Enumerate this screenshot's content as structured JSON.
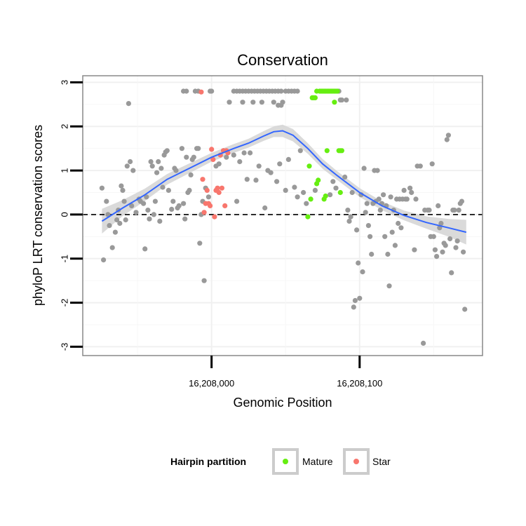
{
  "chart_data": {
    "type": "scatter",
    "title": "Conservation",
    "xlabel": "Genomic Position",
    "ylabel": "phyloP LRT conservation scores",
    "xlim": [
      16207913,
      16208183
    ],
    "ylim": [
      -3.2,
      3.15
    ],
    "x_ticks": [
      16208000,
      16208100
    ],
    "x_tick_labels": [
      "16,208,000",
      "16,208,100"
    ],
    "y_ticks": [
      -3,
      -2,
      -1,
      0,
      1,
      2,
      3
    ],
    "y_tick_labels": [
      "-3",
      "-2",
      "-1",
      "0",
      "1",
      "2",
      "3"
    ],
    "grid": true,
    "reference_line": {
      "y": 0,
      "style": "dashed"
    },
    "legend": {
      "title": "Hairpin partition",
      "position": "bottom",
      "entries": [
        {
          "label": "Mature",
          "color": "#66ee11"
        },
        {
          "label": "Star",
          "color": "#f8766d"
        }
      ]
    },
    "colors": {
      "other": "#999999",
      "mature": "#66ee11",
      "star": "#f8766d",
      "smooth": "#3366ff",
      "band": "#d4d4d4"
    },
    "series": [
      {
        "group": "other",
        "points": [
          [
            16207926,
            0.6
          ],
          [
            16207927,
            -1.03
          ],
          [
            16207929,
            0.3
          ],
          [
            16207930,
            0.0
          ],
          [
            16207931,
            -0.25
          ],
          [
            16207933,
            -0.75
          ],
          [
            16207935,
            -0.4
          ],
          [
            16207936,
            -0.12
          ],
          [
            16207937,
            0.1
          ],
          [
            16207938,
            -0.2
          ],
          [
            16207939,
            0.65
          ],
          [
            16207940,
            0.55
          ],
          [
            16207941,
            0.3
          ],
          [
            16207942,
            -0.12
          ],
          [
            16207943,
            1.1
          ],
          [
            16207944,
            2.52
          ],
          [
            16207945,
            1.2
          ],
          [
            16207946,
            0.2
          ],
          [
            16207947,
            1.0
          ],
          [
            16207949,
            0.05
          ],
          [
            16207951,
            0.35
          ],
          [
            16207952,
            0.3
          ],
          [
            16207954,
            0.25
          ],
          [
            16207955,
            -0.78
          ],
          [
            16207956,
            0.4
          ],
          [
            16207957,
            0.1
          ],
          [
            16207958,
            -0.1
          ],
          [
            16207959,
            1.2
          ],
          [
            16207960,
            1.1
          ],
          [
            16207961,
            0.0
          ],
          [
            16207962,
            0.3
          ],
          [
            16207963,
            0.95
          ],
          [
            16207964,
            1.2
          ],
          [
            16207965,
            -0.15
          ],
          [
            16207966,
            1.05
          ],
          [
            16207967,
            0.62
          ],
          [
            16207968,
            1.35
          ],
          [
            16207969,
            1.42
          ],
          [
            16207970,
            1.45
          ],
          [
            16207971,
            0.55
          ],
          [
            16207973,
            0.12
          ],
          [
            16207974,
            0.3
          ],
          [
            16207975,
            1.05
          ],
          [
            16207976,
            1.0
          ],
          [
            16207977,
            0.15
          ],
          [
            16207978,
            0.2
          ],
          [
            16207980,
            1.5
          ],
          [
            16207981,
            0.25
          ],
          [
            16207982,
            -0.1
          ],
          [
            16207983,
            1.3
          ],
          [
            16207984,
            0.5
          ],
          [
            16207985,
            0.55
          ],
          [
            16207986,
            0.9
          ],
          [
            16207987,
            1.25
          ],
          [
            16207988,
            1.3
          ],
          [
            16207990,
            1.5
          ],
          [
            16207991,
            1.5
          ],
          [
            16207992,
            -0.65
          ],
          [
            16207993,
            0.0
          ],
          [
            16207994,
            0.3
          ],
          [
            16207995,
            -1.5
          ],
          [
            16207996,
            0.6
          ],
          [
            16207998,
            0.4
          ],
          [
            16207999,
            2.8
          ],
          [
            16208000,
            2.8
          ],
          [
            16207981,
            2.8
          ],
          [
            16207983,
            2.8
          ],
          [
            16207989,
            2.8
          ],
          [
            16207991,
            2.8
          ],
          [
            16208003,
            1.1
          ],
          [
            16208005,
            1.15
          ],
          [
            16208008,
            1.45
          ],
          [
            16208010,
            1.3
          ],
          [
            16208012,
            2.55
          ],
          [
            16208015,
            1.35
          ],
          [
            16208017,
            0.3
          ],
          [
            16208019,
            1.2
          ],
          [
            16208021,
            2.55
          ],
          [
            16208022,
            1.4
          ],
          [
            16208024,
            0.8
          ],
          [
            16208026,
            1.4
          ],
          [
            16208028,
            2.55
          ],
          [
            16208030,
            0.78
          ],
          [
            16208032,
            1.1
          ],
          [
            16208034,
            2.55
          ],
          [
            16208036,
            0.15
          ],
          [
            16208038,
            1.0
          ],
          [
            16208040,
            0.95
          ],
          [
            16208042,
            2.55
          ],
          [
            16208044,
            0.75
          ],
          [
            16208046,
            1.15
          ],
          [
            16208048,
            2.55
          ],
          [
            16208050,
            0.55
          ],
          [
            16208052,
            1.25
          ],
          [
            16208054,
            2.8
          ],
          [
            16208056,
            0.62
          ],
          [
            16208058,
            0.4
          ],
          [
            16208060,
            1.45
          ],
          [
            16208062,
            0.5
          ],
          [
            16208064,
            0.25
          ],
          [
            16208070,
            0.55
          ],
          [
            16208080,
            0.45
          ],
          [
            16208082,
            0.75
          ],
          [
            16208084,
            0.6
          ],
          [
            16208086,
            2.8
          ],
          [
            16208088,
            2.6
          ],
          [
            16208090,
            0.85
          ],
          [
            16208092,
            0.1
          ],
          [
            16208093,
            -0.15
          ],
          [
            16208094,
            -0.05
          ],
          [
            16208095,
            0.5
          ],
          [
            16208096,
            -2.1
          ],
          [
            16208097,
            -1.95
          ],
          [
            16208098,
            -0.35
          ],
          [
            16208099,
            -1.1
          ],
          [
            16208100,
            -1.9
          ],
          [
            16208101,
            0.45
          ],
          [
            16208102,
            -1.3
          ],
          [
            16208103,
            1.05
          ],
          [
            16208104,
            0.05
          ],
          [
            16208105,
            0.25
          ],
          [
            16208106,
            -0.25
          ],
          [
            16208107,
            -0.5
          ],
          [
            16208108,
            -0.9
          ],
          [
            16208109,
            0.25
          ],
          [
            16208110,
            1.0
          ],
          [
            16208111,
            0.3
          ],
          [
            16208112,
            1.0
          ],
          [
            16208113,
            0.35
          ],
          [
            16208114,
            0.1
          ],
          [
            16208115,
            0.25
          ],
          [
            16208116,
            0.45
          ],
          [
            16208117,
            -0.5
          ],
          [
            16208118,
            0.2
          ],
          [
            16208119,
            -0.9
          ],
          [
            16208120,
            -1.62
          ],
          [
            16208121,
            0.4
          ],
          [
            16208122,
            -0.4
          ],
          [
            16208123,
            0.1
          ],
          [
            16208124,
            -0.7
          ],
          [
            16208125,
            0.35
          ],
          [
            16208126,
            -0.2
          ],
          [
            16208127,
            0.35
          ],
          [
            16208128,
            -0.3
          ],
          [
            16208129,
            0.35
          ],
          [
            16208130,
            0.55
          ],
          [
            16208131,
            0.35
          ],
          [
            16208132,
            0.35
          ],
          [
            16208134,
            0.6
          ],
          [
            16208135,
            0.5
          ],
          [
            16208137,
            -0.8
          ],
          [
            16208138,
            0.35
          ],
          [
            16208139,
            1.1
          ],
          [
            16208141,
            1.1
          ],
          [
            16208143,
            -2.92
          ],
          [
            16208144,
            0.1
          ],
          [
            16208146,
            0.1
          ],
          [
            16208147,
            0.1
          ],
          [
            16208148,
            -0.5
          ],
          [
            16208149,
            1.15
          ],
          [
            16208150,
            -0.5
          ],
          [
            16208151,
            -0.8
          ],
          [
            16208152,
            -0.95
          ],
          [
            16208153,
            0.2
          ],
          [
            16208154,
            -0.3
          ],
          [
            16208155,
            -0.2
          ],
          [
            16208156,
            -0.85
          ],
          [
            16208157,
            -0.65
          ],
          [
            16208158,
            -0.7
          ],
          [
            16208159,
            1.7
          ],
          [
            16208160,
            1.8
          ],
          [
            16208161,
            -0.55
          ],
          [
            16208162,
            -1.32
          ],
          [
            16208163,
            0.1
          ],
          [
            16208164,
            0.1
          ],
          [
            16208165,
            -0.75
          ],
          [
            16208166,
            -0.6
          ],
          [
            16208167,
            0.1
          ],
          [
            16208168,
            0.25
          ],
          [
            16208169,
            0.3
          ],
          [
            16208170,
            -0.85
          ],
          [
            16208171,
            -2.15
          ],
          [
            16208045,
            2.48
          ],
          [
            16208047,
            2.48
          ],
          [
            16208050,
            2.8
          ],
          [
            16208052,
            2.8
          ],
          [
            16208056,
            2.8
          ],
          [
            16208058,
            2.8
          ],
          [
            16208087,
            2.6
          ],
          [
            16208091,
            2.6
          ]
        ]
      },
      {
        "group": "top_band",
        "points": [
          [
            16208015,
            2.8
          ],
          [
            16208017,
            2.8
          ],
          [
            16208019,
            2.8
          ],
          [
            16208021,
            2.8
          ],
          [
            16208023,
            2.8
          ],
          [
            16208025,
            2.8
          ],
          [
            16208027,
            2.8
          ],
          [
            16208029,
            2.8
          ],
          [
            16208031,
            2.8
          ],
          [
            16208033,
            2.8
          ],
          [
            16208035,
            2.8
          ],
          [
            16208037,
            2.8
          ],
          [
            16208039,
            2.8
          ],
          [
            16208041,
            2.8
          ],
          [
            16208043,
            2.8
          ],
          [
            16208045,
            2.8
          ],
          [
            16208047,
            2.8
          ]
        ]
      },
      {
        "group": "mature",
        "points": [
          [
            16208065,
            -0.05
          ],
          [
            16208066,
            1.1
          ],
          [
            16208067,
            0.35
          ],
          [
            16208068,
            2.65
          ],
          [
            16208069,
            2.65
          ],
          [
            16208070,
            2.65
          ],
          [
            16208071,
            0.7
          ],
          [
            16208071,
            2.8
          ],
          [
            16208072,
            0.78
          ],
          [
            16208073,
            2.8
          ],
          [
            16208074,
            2.8
          ],
          [
            16208075,
            2.8
          ],
          [
            16208076,
            0.35
          ],
          [
            16208076,
            2.8
          ],
          [
            16208077,
            2.8
          ],
          [
            16208078,
            1.45
          ],
          [
            16208078,
            2.8
          ],
          [
            16208079,
            2.8
          ],
          [
            16208080,
            2.8
          ],
          [
            16208081,
            2.8
          ],
          [
            16208082,
            2.8
          ],
          [
            16208083,
            2.55
          ],
          [
            16208083,
            2.8
          ],
          [
            16208084,
            2.8
          ],
          [
            16208085,
            2.8
          ],
          [
            16208086,
            1.45
          ],
          [
            16208087,
            1.45
          ],
          [
            16208088,
            1.45
          ],
          [
            16208087,
            0.5
          ],
          [
            16208077,
            0.42
          ]
        ]
      },
      {
        "group": "star",
        "points": [
          [
            16207993,
            2.78
          ],
          [
            16207994,
            0.8
          ],
          [
            16207995,
            0.05
          ],
          [
            16207996,
            0.25
          ],
          [
            16207997,
            0.55
          ],
          [
            16207998,
            0.25
          ],
          [
            16207999,
            0.2
          ],
          [
            16208000,
            1.48
          ],
          [
            16208001,
            1.25
          ],
          [
            16208002,
            -0.05
          ],
          [
            16208003,
            0.55
          ],
          [
            16208004,
            0.6
          ],
          [
            16208005,
            0.5
          ],
          [
            16208006,
            1.35
          ],
          [
            16208007,
            0.6
          ],
          [
            16208008,
            1.45
          ],
          [
            16208009,
            0.2
          ],
          [
            16208010,
            1.45
          ],
          [
            16208011,
            1.4
          ]
        ]
      }
    ],
    "smooth_curve": {
      "method": "loess",
      "x": [
        16207926,
        16207940,
        16207955,
        16207970,
        16207985,
        16208000,
        16208015,
        16208025,
        16208035,
        16208042,
        16208048,
        16208055,
        16208065,
        16208075,
        16208085,
        16208100,
        16208115,
        16208130,
        16208145,
        16208160,
        16208172
      ],
      "y": [
        -0.15,
        0.15,
        0.45,
        0.8,
        1.05,
        1.3,
        1.5,
        1.62,
        1.78,
        1.88,
        1.9,
        1.8,
        1.5,
        1.15,
        0.88,
        0.5,
        0.2,
        -0.02,
        -0.18,
        -0.3,
        -0.4
      ],
      "band_half_width": [
        0.28,
        0.18,
        0.14,
        0.12,
        0.11,
        0.1,
        0.1,
        0.1,
        0.11,
        0.12,
        0.14,
        0.14,
        0.12,
        0.11,
        0.1,
        0.1,
        0.1,
        0.11,
        0.14,
        0.2,
        0.28
      ]
    }
  }
}
